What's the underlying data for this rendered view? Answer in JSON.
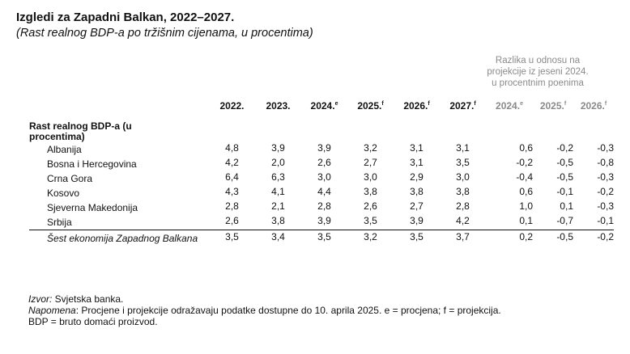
{
  "title": "Izgledi za Zapadni Balkan, 2022–2027.",
  "subtitle": "(Rast realnog BDP-a po tržišnim cijenama, u procentima)",
  "diff_header": [
    "Razlika u odnosu na",
    "projekcije iz jeseni 2024.",
    "u procentnim poenima"
  ],
  "year_headers": [
    {
      "year": "2022.",
      "mark": ""
    },
    {
      "year": "2023.",
      "mark": ""
    },
    {
      "year": "2024.",
      "mark": "e"
    },
    {
      "year": "2025.",
      "mark": "f"
    },
    {
      "year": "2026.",
      "mark": "f"
    },
    {
      "year": "2027.",
      "mark": "f"
    }
  ],
  "diff_headers": [
    {
      "year": "2024.",
      "mark": "e"
    },
    {
      "year": "2025.",
      "mark": "f"
    },
    {
      "year": "2026.",
      "mark": "f"
    }
  ],
  "section_label": "Rast realnog BDP-a (u procentima)",
  "rows": [
    {
      "name": "Albanija",
      "values": [
        "4,8",
        "3,9",
        "3,9",
        "3,2",
        "3,1",
        "3,1"
      ],
      "diffs": [
        "0,6",
        "-0,2",
        "-0,3"
      ]
    },
    {
      "name": "Bosna i Hercegovina",
      "values": [
        "4,2",
        "2,0",
        "2,6",
        "2,7",
        "3,1",
        "3,5"
      ],
      "diffs": [
        "-0,2",
        "-0,5",
        "-0,8"
      ]
    },
    {
      "name": "Crna Gora",
      "values": [
        "6,4",
        "6,3",
        "3,0",
        "3,0",
        "2,9",
        "3,0"
      ],
      "diffs": [
        "-0,4",
        "-0,5",
        "-0,3"
      ]
    },
    {
      "name": "Kosovo",
      "values": [
        "4,3",
        "4,1",
        "4,4",
        "3,8",
        "3,8",
        "3,8"
      ],
      "diffs": [
        "0,6",
        "-0,1",
        "-0,2"
      ]
    },
    {
      "name": "Sjeverna Makedonija",
      "values": [
        "2,8",
        "2,1",
        "2,8",
        "2,6",
        "2,7",
        "2,8"
      ],
      "diffs": [
        "1,0",
        "0,1",
        "-0,3"
      ]
    },
    {
      "name": "Srbija",
      "values": [
        "2,6",
        "3,8",
        "3,9",
        "3,5",
        "3,9",
        "4,2"
      ],
      "diffs": [
        "0,1",
        "-0,7",
        "-0,1"
      ]
    }
  ],
  "total_row": {
    "name": "Šest ekonomija Zapadnog Balkana",
    "values": [
      "3,5",
      "3,4",
      "3,5",
      "3,2",
      "3,5",
      "3,7"
    ],
    "diffs": [
      "0,2",
      "-0,5",
      "-0,2"
    ]
  },
  "notes": {
    "source_label": "Izvor:",
    "source_text": " Svjetska banka.",
    "note_label": "Napomena",
    "note_text": ": Procjene i projekcije odražavaju podatke dostupne do 10. aprila 2025. e = procjena; f = projekcija.",
    "abbr_text": "BDP = bruto domaći proizvod."
  }
}
